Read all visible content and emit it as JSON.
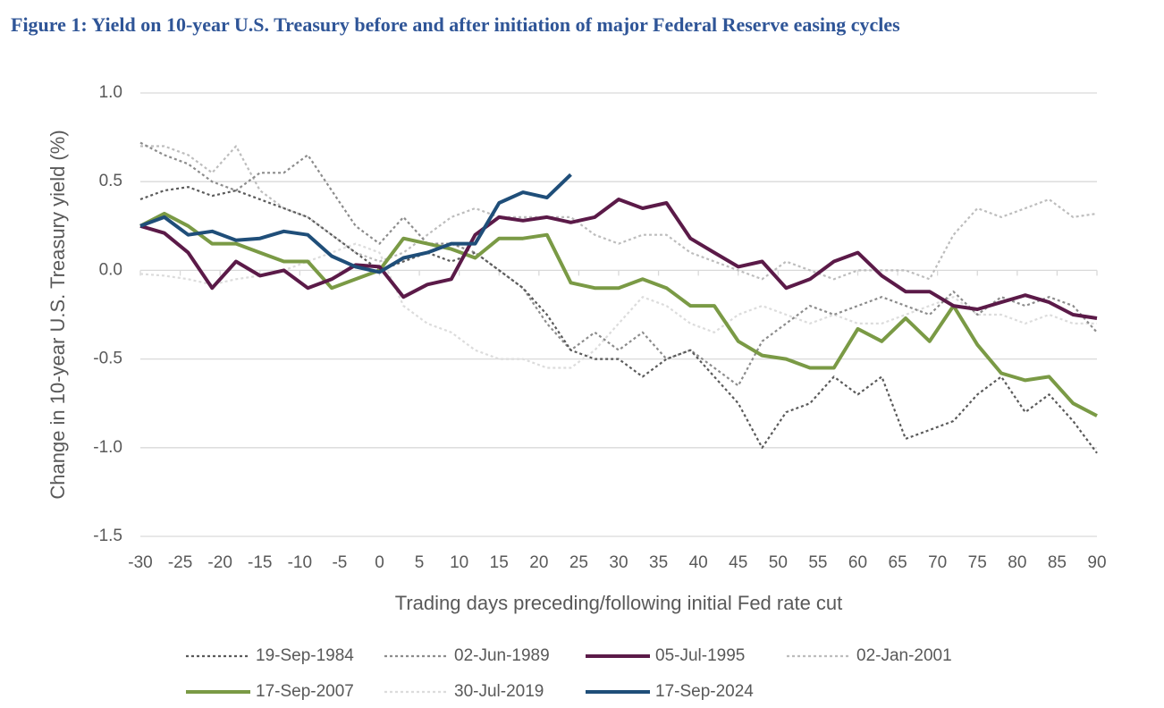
{
  "chart_data": {
    "type": "line",
    "title": "Figure 1: Yield on 10-year U.S. Treasury before and after initiation of major Federal Reserve easing cycles",
    "x_label": "Trading days preceding/following initial Fed rate cut",
    "y_label": "Change in 10-year U.S. Treasury yield (%)",
    "x": [
      -30,
      -27,
      -24,
      -21,
      -18,
      -15,
      -12,
      -9,
      -6,
      -3,
      0,
      3,
      6,
      9,
      12,
      15,
      18,
      21,
      24,
      27,
      30,
      33,
      36,
      39,
      42,
      45,
      48,
      51,
      54,
      57,
      60,
      63,
      66,
      69,
      72,
      75,
      78,
      81,
      84,
      87,
      90
    ],
    "series": [
      {
        "name": "19-Sep-1984",
        "color": "#5a5a5a",
        "style": "dotted",
        "values": [
          0.4,
          0.45,
          0.47,
          0.42,
          0.45,
          0.4,
          0.35,
          0.3,
          0.2,
          0.1,
          0.0,
          0.05,
          0.1,
          0.05,
          0.1,
          0.0,
          -0.1,
          -0.25,
          -0.45,
          -0.5,
          -0.5,
          -0.6,
          -0.5,
          -0.45,
          -0.6,
          -0.75,
          -1.0,
          -0.8,
          -0.75,
          -0.6,
          -0.7,
          -0.6,
          -0.95,
          -0.9,
          -0.85,
          -0.7,
          -0.6,
          -0.8,
          -0.7,
          -0.85,
          -1.03
        ]
      },
      {
        "name": "02-Jun-1989",
        "color": "#8c8c8c",
        "style": "dotted",
        "values": [
          0.72,
          0.65,
          0.6,
          0.5,
          0.45,
          0.55,
          0.55,
          0.65,
          0.45,
          0.25,
          0.15,
          0.3,
          0.15,
          0.15,
          0.1,
          0.0,
          -0.1,
          -0.3,
          -0.45,
          -0.35,
          -0.45,
          -0.35,
          -0.5,
          -0.45,
          -0.55,
          -0.65,
          -0.4,
          -0.3,
          -0.2,
          -0.25,
          -0.2,
          -0.15,
          -0.2,
          -0.25,
          -0.12,
          -0.25,
          -0.15,
          -0.2,
          -0.15,
          -0.2,
          -0.35
        ]
      },
      {
        "name": "05-Jul-1995",
        "color": "#5b1a48",
        "style": "solid",
        "values": [
          0.25,
          0.21,
          0.1,
          -0.1,
          0.05,
          -0.03,
          0.0,
          -0.1,
          -0.05,
          0.03,
          0.02,
          -0.15,
          -0.08,
          -0.05,
          0.2,
          0.3,
          0.28,
          0.3,
          0.27,
          0.3,
          0.4,
          0.35,
          0.38,
          0.18,
          0.1,
          0.02,
          0.05,
          -0.1,
          -0.05,
          0.05,
          0.1,
          -0.03,
          -0.12,
          -0.12,
          -0.2,
          -0.22,
          -0.18,
          -0.14,
          -0.18,
          -0.25,
          -0.27
        ]
      },
      {
        "name": "02-Jan-2001",
        "color": "#bdbdbd",
        "style": "dotted",
        "values": [
          0.7,
          0.7,
          0.65,
          0.55,
          0.7,
          0.45,
          0.35,
          0.3,
          0.2,
          0.1,
          0.05,
          0.1,
          0.2,
          0.3,
          0.35,
          0.3,
          0.3,
          0.3,
          0.3,
          0.2,
          0.15,
          0.2,
          0.2,
          0.1,
          0.05,
          0.0,
          -0.05,
          0.05,
          0.0,
          -0.05,
          0.0,
          0.0,
          0.0,
          -0.05,
          0.2,
          0.35,
          0.3,
          0.35,
          0.4,
          0.3,
          0.32
        ]
      },
      {
        "name": "17-Sep-2007",
        "color": "#7a9a45",
        "style": "solid",
        "values": [
          0.25,
          0.32,
          0.25,
          0.15,
          0.15,
          0.1,
          0.05,
          0.05,
          -0.1,
          -0.05,
          0.0,
          0.18,
          0.15,
          0.12,
          0.07,
          0.18,
          0.18,
          0.2,
          -0.07,
          -0.1,
          -0.1,
          -0.05,
          -0.1,
          -0.2,
          -0.2,
          -0.4,
          -0.48,
          -0.5,
          -0.55,
          -0.55,
          -0.33,
          -0.4,
          -0.27,
          -0.4,
          -0.2,
          -0.42,
          -0.58,
          -0.62,
          -0.6,
          -0.75,
          -0.82
        ]
      },
      {
        "name": "30-Jul-2019",
        "color": "#dcdcdc",
        "style": "dotted",
        "values": [
          -0.02,
          -0.03,
          -0.05,
          -0.08,
          -0.05,
          -0.03,
          0.0,
          0.05,
          0.1,
          0.15,
          0.1,
          -0.2,
          -0.3,
          -0.35,
          -0.45,
          -0.5,
          -0.5,
          -0.55,
          -0.55,
          -0.45,
          -0.3,
          -0.15,
          -0.2,
          -0.3,
          -0.35,
          -0.25,
          -0.2,
          -0.25,
          -0.3,
          -0.25,
          -0.3,
          -0.3,
          -0.25,
          -0.2,
          -0.15,
          -0.25,
          -0.25,
          -0.3,
          -0.25,
          -0.3,
          -0.3
        ]
      },
      {
        "name": "17-Sep-2024",
        "color": "#1f4e79",
        "style": "solid",
        "values": [
          0.25,
          0.3,
          0.2,
          0.22,
          0.17,
          0.18,
          0.22,
          0.2,
          0.08,
          0.02,
          -0.01,
          0.07,
          0.1,
          0.15,
          0.15,
          0.38,
          0.44,
          0.41,
          0.54,
          null,
          null,
          null,
          null,
          null,
          null,
          null,
          null,
          null,
          null,
          null,
          null,
          null,
          null,
          null,
          null,
          null,
          null,
          null,
          null,
          null,
          null
        ]
      }
    ],
    "xlim": [
      -30,
      90
    ],
    "xticks": [
      -30,
      -25,
      -20,
      -15,
      -10,
      -5,
      0,
      5,
      10,
      15,
      20,
      25,
      30,
      35,
      40,
      45,
      50,
      55,
      60,
      65,
      70,
      75,
      80,
      85,
      90
    ],
    "ylim": [
      -1.5,
      1.0
    ],
    "yticks": [
      -1.5,
      {
        "value": -1.0,
        "label": "-1.0"
      },
      -0.5,
      {
        "value": 0.0,
        "label": "0.0"
      },
      0.5,
      {
        "value": 1.0,
        "label": "1.0"
      }
    ],
    "grid": true,
    "legend": "bottom"
  }
}
